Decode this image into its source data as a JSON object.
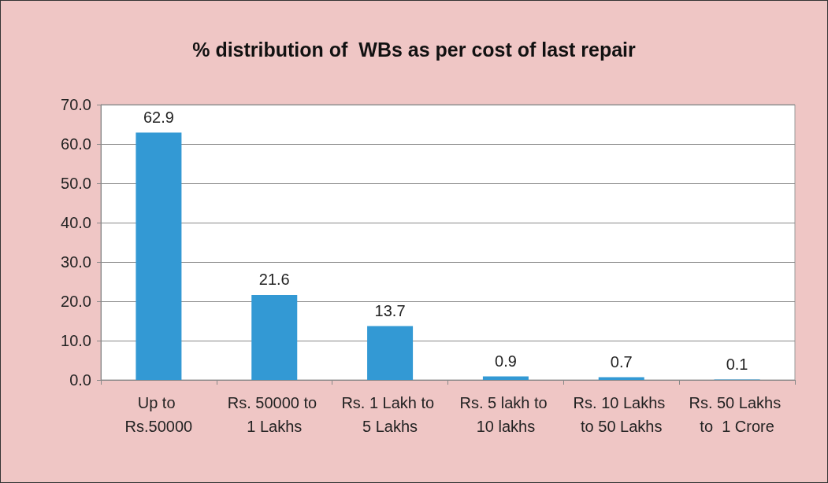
{
  "chart_data": {
    "type": "bar",
    "title": "% distribution of  WBs as per cost of last repair",
    "categories": [
      "Up to Rs.50000",
      "Rs. 50000 to 1 Lakhs",
      "Rs. 1 Lakh to 5 Lakhs",
      "Rs. 5 lakh to 10 lakhs",
      "Rs. 10 Lakhs to 50 Lakhs",
      "Rs. 50 Lakhs to  1 Crore"
    ],
    "values": [
      62.9,
      21.6,
      13.7,
      0.9,
      0.7,
      0.1
    ],
    "color": "#3399d4",
    "ylim": [
      0,
      70
    ],
    "yticks": [
      {
        "value": 0,
        "label": "0.0"
      },
      {
        "value": 10,
        "label": "10.0"
      },
      {
        "value": 20,
        "label": "20.0"
      },
      {
        "value": 30,
        "label": "30.0"
      },
      {
        "value": 40,
        "label": "40.0"
      },
      {
        "value": 50,
        "label": "50.0"
      },
      {
        "value": 60,
        "label": "60.0"
      },
      {
        "value": 70,
        "label": "70.0"
      }
    ],
    "grid": true,
    "data_labels": true
  }
}
